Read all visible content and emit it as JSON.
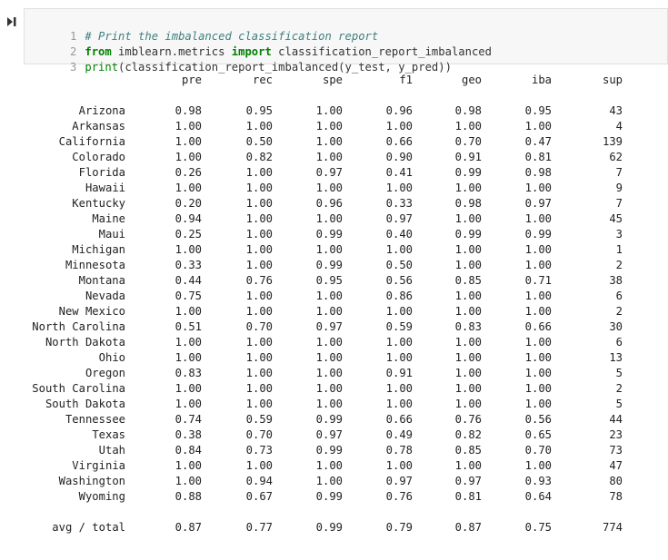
{
  "cell": {
    "lines": [
      {
        "num": "1",
        "comment": "# Print the imbalanced classification report"
      },
      {
        "num": "2",
        "kw1": "from",
        "mod": " imblearn.metrics ",
        "kw2": "import",
        "name": " classification_report_imbalanced"
      },
      {
        "num": "3",
        "fn": "print",
        "rest": "(classification_report_imbalanced(y_test, y_pred))"
      }
    ]
  },
  "report": {
    "headers": [
      "pre",
      "rec",
      "spe",
      "f1",
      "geo",
      "iba",
      "sup"
    ],
    "rows": [
      {
        "label": "Arizona",
        "values": [
          "0.98",
          "0.95",
          "1.00",
          "0.96",
          "0.98",
          "0.95",
          "43"
        ]
      },
      {
        "label": "Arkansas",
        "values": [
          "1.00",
          "1.00",
          "1.00",
          "1.00",
          "1.00",
          "1.00",
          "4"
        ]
      },
      {
        "label": "California",
        "values": [
          "1.00",
          "0.50",
          "1.00",
          "0.66",
          "0.70",
          "0.47",
          "139"
        ]
      },
      {
        "label": "Colorado",
        "values": [
          "1.00",
          "0.82",
          "1.00",
          "0.90",
          "0.91",
          "0.81",
          "62"
        ]
      },
      {
        "label": "Florida",
        "values": [
          "0.26",
          "1.00",
          "0.97",
          "0.41",
          "0.99",
          "0.98",
          "7"
        ]
      },
      {
        "label": "Hawaii",
        "values": [
          "1.00",
          "1.00",
          "1.00",
          "1.00",
          "1.00",
          "1.00",
          "9"
        ]
      },
      {
        "label": "Kentucky",
        "values": [
          "0.20",
          "1.00",
          "0.96",
          "0.33",
          "0.98",
          "0.97",
          "7"
        ]
      },
      {
        "label": "Maine",
        "values": [
          "0.94",
          "1.00",
          "1.00",
          "0.97",
          "1.00",
          "1.00",
          "45"
        ]
      },
      {
        "label": "Maui",
        "values": [
          "0.25",
          "1.00",
          "0.99",
          "0.40",
          "0.99",
          "0.99",
          "3"
        ]
      },
      {
        "label": "Michigan",
        "values": [
          "1.00",
          "1.00",
          "1.00",
          "1.00",
          "1.00",
          "1.00",
          "1"
        ]
      },
      {
        "label": "Minnesota",
        "values": [
          "0.33",
          "1.00",
          "0.99",
          "0.50",
          "1.00",
          "1.00",
          "2"
        ]
      },
      {
        "label": "Montana",
        "values": [
          "0.44",
          "0.76",
          "0.95",
          "0.56",
          "0.85",
          "0.71",
          "38"
        ]
      },
      {
        "label": "Nevada",
        "values": [
          "0.75",
          "1.00",
          "1.00",
          "0.86",
          "1.00",
          "1.00",
          "6"
        ]
      },
      {
        "label": "New Mexico",
        "values": [
          "1.00",
          "1.00",
          "1.00",
          "1.00",
          "1.00",
          "1.00",
          "2"
        ]
      },
      {
        "label": "North Carolina",
        "values": [
          "0.51",
          "0.70",
          "0.97",
          "0.59",
          "0.83",
          "0.66",
          "30"
        ]
      },
      {
        "label": "North Dakota",
        "values": [
          "1.00",
          "1.00",
          "1.00",
          "1.00",
          "1.00",
          "1.00",
          "6"
        ]
      },
      {
        "label": "Ohio",
        "values": [
          "1.00",
          "1.00",
          "1.00",
          "1.00",
          "1.00",
          "1.00",
          "13"
        ]
      },
      {
        "label": "Oregon",
        "values": [
          "0.83",
          "1.00",
          "1.00",
          "0.91",
          "1.00",
          "1.00",
          "5"
        ]
      },
      {
        "label": "South Carolina",
        "values": [
          "1.00",
          "1.00",
          "1.00",
          "1.00",
          "1.00",
          "1.00",
          "2"
        ]
      },
      {
        "label": "South Dakota",
        "values": [
          "1.00",
          "1.00",
          "1.00",
          "1.00",
          "1.00",
          "1.00",
          "5"
        ]
      },
      {
        "label": "Tennessee",
        "values": [
          "0.74",
          "0.59",
          "0.99",
          "0.66",
          "0.76",
          "0.56",
          "44"
        ]
      },
      {
        "label": "Texas",
        "values": [
          "0.38",
          "0.70",
          "0.97",
          "0.49",
          "0.82",
          "0.65",
          "23"
        ]
      },
      {
        "label": "Utah",
        "values": [
          "0.84",
          "0.73",
          "0.99",
          "0.78",
          "0.85",
          "0.70",
          "73"
        ]
      },
      {
        "label": "Virginia",
        "values": [
          "1.00",
          "1.00",
          "1.00",
          "1.00",
          "1.00",
          "1.00",
          "47"
        ]
      },
      {
        "label": "Washington",
        "values": [
          "1.00",
          "0.94",
          "1.00",
          "0.97",
          "0.97",
          "0.93",
          "80"
        ]
      },
      {
        "label": "Wyoming",
        "values": [
          "0.88",
          "0.67",
          "0.99",
          "0.76",
          "0.81",
          "0.64",
          "78"
        ]
      }
    ],
    "total": {
      "label": "avg / total",
      "values": [
        "0.87",
        "0.77",
        "0.99",
        "0.79",
        "0.87",
        "0.75",
        "774"
      ]
    }
  }
}
